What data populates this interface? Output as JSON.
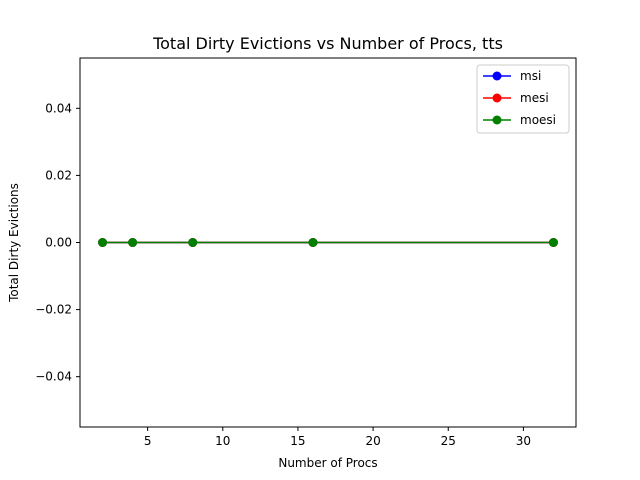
{
  "chart_data": {
    "type": "line",
    "title": "Total Dirty Evictions vs Number of Procs, tts",
    "xlabel": "Number of Procs",
    "ylabel": "Total Dirty Evictions",
    "x": [
      2,
      4,
      8,
      16,
      32
    ],
    "xlim": [
      0.5,
      33.5
    ],
    "ylim": [
      -0.055,
      0.055
    ],
    "xticks": [
      5,
      10,
      15,
      20,
      25,
      30
    ],
    "xtick_labels": [
      "5",
      "10",
      "15",
      "20",
      "25",
      "30"
    ],
    "yticks": [
      -0.04,
      -0.02,
      0.0,
      0.02,
      0.04
    ],
    "ytick_labels": [
      "−0.04",
      "−0.02",
      "0.00",
      "0.02",
      "0.04"
    ],
    "grid": false,
    "legend_position": "top-right",
    "series": [
      {
        "name": "msi",
        "color": "#0000ff",
        "values": [
          0,
          0,
          0,
          0,
          0
        ]
      },
      {
        "name": "mesi",
        "color": "#ff0000",
        "values": [
          0,
          0,
          0,
          0,
          0
        ]
      },
      {
        "name": "moesi",
        "color": "#008000",
        "values": [
          0,
          0,
          0,
          0,
          0
        ]
      }
    ]
  }
}
